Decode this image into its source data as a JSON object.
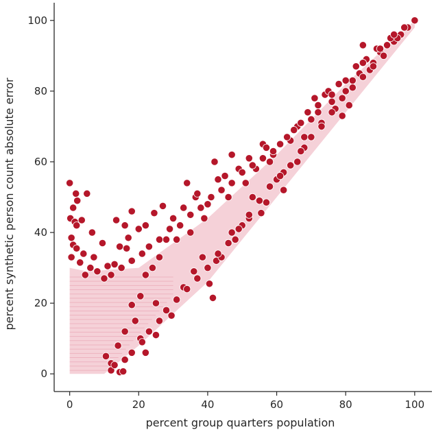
{
  "chart_data": {
    "type": "scatter",
    "title": "",
    "xlabel": "percent group quarters population",
    "ylabel": "percent synthetic person count absolute error",
    "xlim": [
      -4.5,
      105
    ],
    "ylim": [
      -5,
      105
    ],
    "xticks": [
      0,
      20,
      40,
      60,
      80,
      100
    ],
    "yticks": [
      0,
      20,
      40,
      60,
      80,
      100
    ],
    "grid": false,
    "legend": "none",
    "marker_color": "#b5172a",
    "marker_edge_color": "#ffffff",
    "axis_color": "#262626",
    "series": [
      {
        "points": [
          [
            0,
            54
          ],
          [
            0.2,
            44
          ],
          [
            0.5,
            38.5
          ],
          [
            1,
            47
          ],
          [
            1.5,
            43
          ],
          [
            1.8,
            51
          ],
          [
            2,
            42
          ],
          [
            2.2,
            49
          ],
          [
            3.5,
            43.5
          ],
          [
            5,
            51
          ],
          [
            6.5,
            40
          ],
          [
            9.5,
            37
          ],
          [
            1,
            36.5
          ],
          [
            2,
            35.5
          ],
          [
            0.5,
            33
          ],
          [
            4,
            34
          ],
          [
            7,
            33
          ],
          [
            3,
            31.5
          ],
          [
            11,
            30.5
          ],
          [
            13,
            31
          ],
          [
            14.5,
            36
          ],
          [
            13.5,
            43.5
          ],
          [
            16,
            42
          ],
          [
            17,
            38.5
          ],
          [
            16.5,
            35.5
          ],
          [
            18,
            46
          ],
          [
            20,
            41
          ],
          [
            22,
            42
          ],
          [
            24.5,
            45.5
          ],
          [
            27,
            47.5
          ],
          [
            34,
            54
          ],
          [
            36.5,
            50
          ],
          [
            40,
            48
          ],
          [
            42,
            60
          ],
          [
            45,
            56
          ],
          [
            47,
            62
          ],
          [
            28,
            38
          ],
          [
            26,
            33
          ],
          [
            24,
            30
          ],
          [
            22,
            28
          ],
          [
            20.5,
            22
          ],
          [
            18,
            19.5
          ],
          [
            19,
            15
          ],
          [
            20.5,
            10
          ],
          [
            22,
            6
          ],
          [
            25,
            11
          ],
          [
            16,
            12
          ],
          [
            14,
            8
          ],
          [
            14.5,
            0.5
          ],
          [
            15.5,
            0.7
          ],
          [
            12,
            3
          ],
          [
            10.5,
            5
          ],
          [
            25,
            20
          ],
          [
            29.5,
            16.5
          ],
          [
            33,
            24.5
          ],
          [
            36,
            29
          ],
          [
            38.5,
            33
          ],
          [
            40.5,
            25.5
          ],
          [
            41.5,
            21.5
          ],
          [
            42.5,
            32
          ],
          [
            47,
            40
          ],
          [
            50,
            42
          ],
          [
            53,
            50
          ],
          [
            54,
            58
          ],
          [
            56,
            65
          ],
          [
            58,
            60
          ],
          [
            57,
            48.5
          ],
          [
            60,
            55
          ],
          [
            62,
            57
          ],
          [
            64,
            66
          ],
          [
            66,
            70
          ],
          [
            68,
            64
          ],
          [
            70,
            72
          ],
          [
            72,
            76
          ],
          [
            74,
            79
          ],
          [
            76,
            77
          ],
          [
            78,
            82
          ],
          [
            80,
            80
          ],
          [
            81,
            76
          ],
          [
            84,
            85
          ],
          [
            85,
            93
          ],
          [
            86,
            89
          ],
          [
            88,
            88
          ],
          [
            90,
            91
          ],
          [
            92,
            93
          ],
          [
            94,
            94
          ],
          [
            96,
            96
          ],
          [
            98,
            98
          ],
          [
            100,
            100
          ],
          [
            79,
            73
          ],
          [
            66,
            60
          ],
          [
            62,
            52
          ],
          [
            52,
            44
          ],
          [
            48,
            38
          ],
          [
            44,
            33
          ],
          [
            55.5,
            45.5
          ],
          [
            68,
            67
          ],
          [
            73,
            71
          ],
          [
            77,
            75
          ],
          [
            82,
            83
          ],
          [
            87,
            86
          ],
          [
            91,
            90
          ],
          [
            95,
            95
          ],
          [
            59,
            62
          ],
          [
            51,
            54
          ],
          [
            46,
            50
          ],
          [
            39,
            44
          ],
          [
            35,
            40
          ],
          [
            31,
            38
          ],
          [
            30,
            44
          ],
          [
            33,
            47
          ],
          [
            37,
            51
          ],
          [
            43,
            55
          ],
          [
            49,
            58
          ],
          [
            52,
            61
          ],
          [
            57,
            64
          ],
          [
            61,
            65
          ],
          [
            65,
            69
          ],
          [
            69,
            74
          ],
          [
            71,
            78
          ],
          [
            75,
            80
          ],
          [
            83,
            87
          ],
          [
            89,
            92
          ],
          [
            93,
            95
          ],
          [
            97,
            98
          ],
          [
            8,
            29
          ],
          [
            6,
            30
          ],
          [
            4.5,
            28
          ],
          [
            10,
            27
          ],
          [
            12,
            28
          ],
          [
            15,
            30
          ],
          [
            18,
            32
          ],
          [
            21,
            34
          ],
          [
            23,
            36
          ],
          [
            26,
            38
          ],
          [
            29,
            41
          ],
          [
            32,
            42
          ],
          [
            35,
            45
          ],
          [
            38,
            47
          ],
          [
            41,
            50
          ],
          [
            44,
            52
          ],
          [
            47,
            54
          ],
          [
            50,
            57
          ],
          [
            53,
            59
          ],
          [
            56,
            61
          ],
          [
            59,
            63
          ],
          [
            63,
            67
          ],
          [
            67,
            71
          ],
          [
            72,
            74
          ],
          [
            76,
            79
          ],
          [
            80,
            83
          ],
          [
            85,
            88
          ],
          [
            90,
            92
          ],
          [
            94,
            96
          ],
          [
            12,
            1
          ],
          [
            13,
            2.5
          ],
          [
            16,
            4
          ],
          [
            18,
            6
          ],
          [
            21,
            9
          ],
          [
            23,
            12
          ],
          [
            26,
            15
          ],
          [
            28,
            18
          ],
          [
            31,
            21
          ],
          [
            34,
            24
          ],
          [
            37,
            27
          ],
          [
            40,
            30
          ],
          [
            43,
            34
          ],
          [
            46,
            37
          ],
          [
            49,
            41
          ],
          [
            52,
            45
          ],
          [
            55,
            49
          ],
          [
            58,
            53
          ],
          [
            61,
            56
          ],
          [
            64,
            59
          ],
          [
            67,
            63
          ],
          [
            70,
            67
          ],
          [
            73,
            70
          ],
          [
            76,
            74
          ],
          [
            79,
            78
          ],
          [
            82,
            81
          ],
          [
            85,
            84
          ],
          [
            88,
            87
          ],
          [
            91,
            90
          ]
        ]
      }
    ]
  }
}
